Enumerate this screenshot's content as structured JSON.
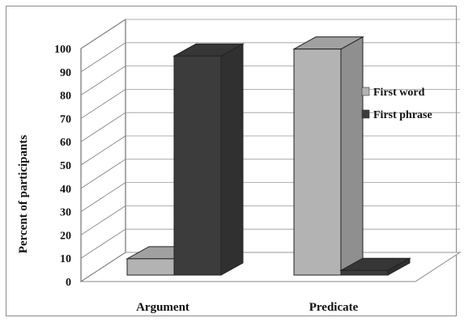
{
  "chart_data": {
    "type": "bar",
    "categories": [
      "Argument",
      "Predicate"
    ],
    "series": [
      {
        "name": "First word",
        "values": [
          7,
          97
        ],
        "color": "#b3b3b3"
      },
      {
        "name": "First phrase",
        "values": [
          94,
          2
        ],
        "color": "#3c3c3c"
      }
    ],
    "ylabel": "Percent of participants",
    "xlabel": "",
    "ylim": [
      0,
      100
    ],
    "yticks": [
      0,
      10,
      20,
      30,
      40,
      50,
      60,
      70,
      80,
      90,
      100
    ],
    "grid": true,
    "legend_position": "right"
  }
}
